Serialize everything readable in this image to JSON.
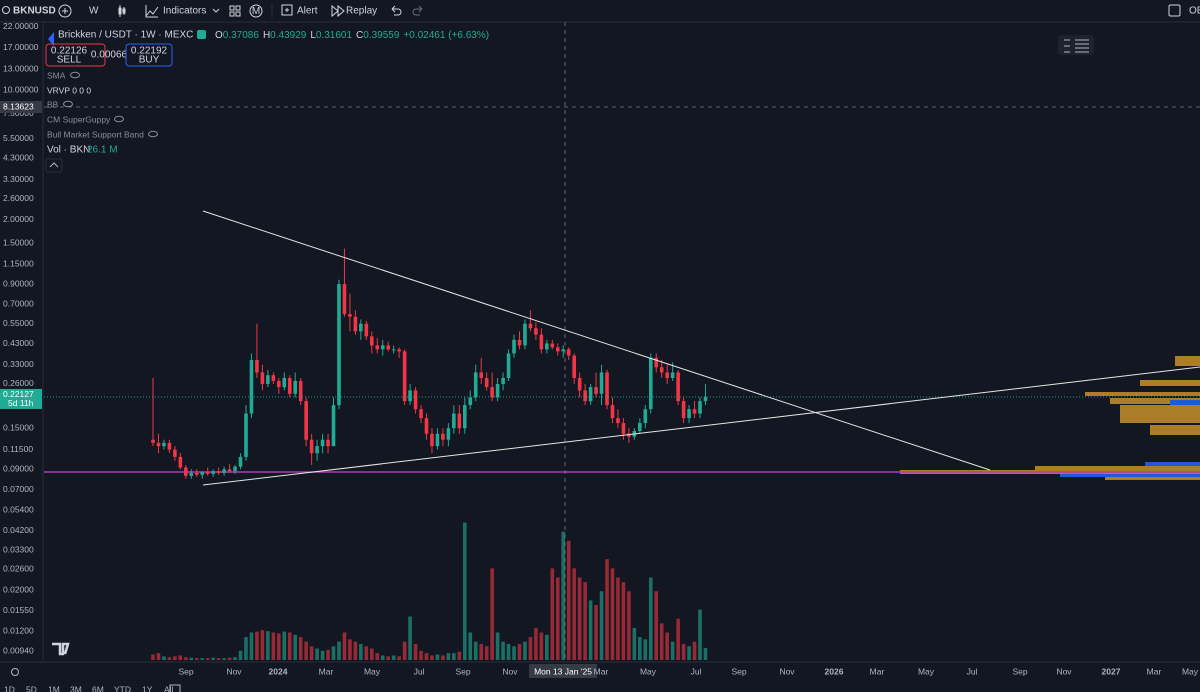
{
  "toolbar": {
    "symbol": "BKNUSD",
    "interval": "W",
    "indicators": "Indicators",
    "alert": "Alert",
    "replay": "Replay",
    "right": "OE"
  },
  "legend": {
    "title": "Brickken / USDT · 1W · MEXC",
    "ohlc": [
      {
        "k": "O",
        "v": "0.37086"
      },
      {
        "k": "H",
        "v": "0.43929"
      },
      {
        "k": "L",
        "v": "0.31601"
      },
      {
        "k": "C",
        "v": "0.39559"
      }
    ],
    "change": "+0.02461 (+6.63%)",
    "sell_price": "0.22126",
    "sell": "SELL",
    "spread": "0.00066",
    "buy_price": "0.22192",
    "buy": "BUY",
    "indicators": [
      "SMA",
      "VRVP  0 0 0",
      "BB",
      "CM SuperGuppy",
      "Bull Market Support Band"
    ],
    "volume": "Vol · BKN",
    "volume_value": "26.1 M"
  },
  "chart_data": {
    "type": "candlestick",
    "log_scale": true,
    "ylim": [
      0.0082,
      24
    ],
    "yticks": [
      {
        "value": 22,
        "label": "22.00000"
      },
      {
        "value": 17,
        "label": "17.00000"
      },
      {
        "value": 13,
        "label": "13.00000"
      },
      {
        "value": 10,
        "label": "10.00000"
      },
      {
        "value": 7.5,
        "label": "7.50000"
      },
      {
        "value": 5.5,
        "label": "5.50000"
      },
      {
        "value": 4.3,
        "label": "4.30000"
      },
      {
        "value": 3.3,
        "label": "3.30000"
      },
      {
        "value": 2.6,
        "label": "2.60000"
      },
      {
        "value": 2,
        "label": "2.00000"
      },
      {
        "value": 1.5,
        "label": "1.50000"
      },
      {
        "value": 1.15,
        "label": "1.15000"
      },
      {
        "value": 0.9,
        "label": "0.90000"
      },
      {
        "value": 0.7,
        "label": "0.70000"
      },
      {
        "value": 0.55,
        "label": "0.55000"
      },
      {
        "value": 0.43,
        "label": "0.43000"
      },
      {
        "value": 0.33,
        "label": "0.33000"
      },
      {
        "value": 0.26,
        "label": "0.26000"
      },
      {
        "value": 0.15,
        "label": "0.15000"
      },
      {
        "value": 0.115,
        "label": "0.11500"
      },
      {
        "value": 0.09,
        "label": "0.09000"
      },
      {
        "value": 0.07,
        "label": "0.07000"
      },
      {
        "value": 0.054,
        "label": "0.05400"
      },
      {
        "value": 0.042,
        "label": "0.04200"
      },
      {
        "value": 0.033,
        "label": "0.03300"
      },
      {
        "value": 0.026,
        "label": "0.02600"
      },
      {
        "value": 0.02,
        "label": "0.02000"
      },
      {
        "value": 0.0155,
        "label": "0.01550"
      },
      {
        "value": 0.012,
        "label": "0.01200"
      },
      {
        "value": 0.0094,
        "label": "0.00940"
      }
    ],
    "last_price": 0.22127,
    "countdown": "5d 11h",
    "crosshair_price": 8.13623,
    "crosshair_date": "Mon 13 Jan '25",
    "support_level": 0.087,
    "support_color": "#b03ab8",
    "up_color": "#22ab94",
    "down_color": "#f23645",
    "xlabels": [
      "Sep",
      "Nov",
      "2024",
      "Mar",
      "May",
      "Jul",
      "Sep",
      "Nov",
      "Mon 13 Jan '25",
      "Mar",
      "May",
      "Jul",
      "Sep",
      "Nov",
      "2026",
      "Mar",
      "May",
      "Jul",
      "Sep",
      "Nov",
      "2027",
      "Mar",
      "May"
    ],
    "candles": [
      [
        0.13,
        0.28,
        0.12,
        0.125
      ],
      [
        0.125,
        0.14,
        0.11,
        0.12
      ],
      [
        0.12,
        0.13,
        0.115,
        0.125
      ],
      [
        0.125,
        0.13,
        0.11,
        0.115
      ],
      [
        0.115,
        0.12,
        0.1,
        0.105
      ],
      [
        0.105,
        0.11,
        0.09,
        0.092
      ],
      [
        0.092,
        0.095,
        0.08,
        0.083
      ],
      [
        0.083,
        0.09,
        0.08,
        0.086
      ],
      [
        0.086,
        0.09,
        0.082,
        0.084
      ],
      [
        0.084,
        0.088,
        0.08,
        0.087
      ],
      [
        0.087,
        0.092,
        0.083,
        0.085
      ],
      [
        0.085,
        0.09,
        0.082,
        0.088
      ],
      [
        0.088,
        0.092,
        0.084,
        0.086
      ],
      [
        0.086,
        0.093,
        0.083,
        0.09
      ],
      [
        0.09,
        0.096,
        0.086,
        0.088
      ],
      [
        0.088,
        0.095,
        0.085,
        0.093
      ],
      [
        0.093,
        0.11,
        0.09,
        0.105
      ],
      [
        0.105,
        0.2,
        0.1,
        0.18
      ],
      [
        0.18,
        0.38,
        0.17,
        0.35
      ],
      [
        0.35,
        0.55,
        0.28,
        0.3
      ],
      [
        0.3,
        0.33,
        0.24,
        0.26
      ],
      [
        0.26,
        0.31,
        0.25,
        0.29
      ],
      [
        0.29,
        0.3,
        0.26,
        0.27
      ],
      [
        0.27,
        0.28,
        0.23,
        0.25
      ],
      [
        0.25,
        0.3,
        0.24,
        0.28
      ],
      [
        0.28,
        0.29,
        0.22,
        0.23
      ],
      [
        0.23,
        0.3,
        0.22,
        0.27
      ],
      [
        0.27,
        0.28,
        0.2,
        0.21
      ],
      [
        0.21,
        0.22,
        0.12,
        0.13
      ],
      [
        0.13,
        0.14,
        0.095,
        0.11
      ],
      [
        0.11,
        0.13,
        0.1,
        0.12
      ],
      [
        0.12,
        0.14,
        0.11,
        0.13
      ],
      [
        0.13,
        0.14,
        0.11,
        0.12
      ],
      [
        0.12,
        0.22,
        0.12,
        0.2
      ],
      [
        0.2,
        0.95,
        0.19,
        0.9
      ],
      [
        0.9,
        1.4,
        0.6,
        0.62
      ],
      [
        0.62,
        0.8,
        0.5,
        0.6
      ],
      [
        0.6,
        0.65,
        0.48,
        0.5
      ],
      [
        0.5,
        0.58,
        0.45,
        0.55
      ],
      [
        0.55,
        0.57,
        0.45,
        0.47
      ],
      [
        0.47,
        0.5,
        0.38,
        0.42
      ],
      [
        0.42,
        0.46,
        0.38,
        0.4
      ],
      [
        0.4,
        0.45,
        0.37,
        0.42
      ],
      [
        0.42,
        0.44,
        0.39,
        0.4
      ],
      [
        0.4,
        0.42,
        0.38,
        0.4
      ],
      [
        0.4,
        0.41,
        0.36,
        0.39
      ],
      [
        0.39,
        0.4,
        0.2,
        0.21
      ],
      [
        0.21,
        0.26,
        0.2,
        0.24
      ],
      [
        0.24,
        0.25,
        0.18,
        0.19
      ],
      [
        0.19,
        0.2,
        0.16,
        0.17
      ],
      [
        0.17,
        0.18,
        0.13,
        0.14
      ],
      [
        0.14,
        0.15,
        0.11,
        0.12
      ],
      [
        0.12,
        0.15,
        0.115,
        0.14
      ],
      [
        0.14,
        0.15,
        0.12,
        0.13
      ],
      [
        0.13,
        0.16,
        0.12,
        0.15
      ],
      [
        0.15,
        0.2,
        0.14,
        0.18
      ],
      [
        0.18,
        0.2,
        0.14,
        0.15
      ],
      [
        0.15,
        0.22,
        0.14,
        0.2
      ],
      [
        0.2,
        0.24,
        0.19,
        0.22
      ],
      [
        0.22,
        0.33,
        0.21,
        0.3
      ],
      [
        0.3,
        0.36,
        0.26,
        0.28
      ],
      [
        0.28,
        0.3,
        0.24,
        0.25
      ],
      [
        0.25,
        0.3,
        0.21,
        0.22
      ],
      [
        0.22,
        0.28,
        0.21,
        0.26
      ],
      [
        0.26,
        0.3,
        0.24,
        0.28
      ],
      [
        0.28,
        0.4,
        0.27,
        0.38
      ],
      [
        0.38,
        0.48,
        0.36,
        0.45
      ],
      [
        0.45,
        0.5,
        0.4,
        0.42
      ],
      [
        0.42,
        0.58,
        0.4,
        0.55
      ],
      [
        0.55,
        0.65,
        0.5,
        0.52
      ],
      [
        0.52,
        0.56,
        0.45,
        0.48
      ],
      [
        0.48,
        0.52,
        0.38,
        0.4
      ],
      [
        0.4,
        0.45,
        0.38,
        0.43
      ],
      [
        0.43,
        0.45,
        0.4,
        0.41
      ],
      [
        0.41,
        0.43,
        0.37,
        0.39
      ],
      [
        0.39,
        0.42,
        0.36,
        0.4
      ],
      [
        0.4,
        0.41,
        0.35,
        0.37
      ],
      [
        0.37,
        0.38,
        0.26,
        0.28
      ],
      [
        0.28,
        0.3,
        0.22,
        0.24
      ],
      [
        0.24,
        0.26,
        0.2,
        0.21
      ],
      [
        0.21,
        0.26,
        0.2,
        0.25
      ],
      [
        0.25,
        0.3,
        0.22,
        0.23
      ],
      [
        0.23,
        0.33,
        0.2,
        0.3
      ],
      [
        0.3,
        0.31,
        0.19,
        0.2
      ],
      [
        0.2,
        0.22,
        0.16,
        0.17
      ],
      [
        0.17,
        0.19,
        0.15,
        0.16
      ],
      [
        0.16,
        0.17,
        0.13,
        0.14
      ],
      [
        0.14,
        0.15,
        0.125,
        0.135
      ],
      [
        0.135,
        0.15,
        0.13,
        0.145
      ],
      [
        0.145,
        0.17,
        0.14,
        0.16
      ],
      [
        0.16,
        0.2,
        0.15,
        0.19
      ],
      [
        0.19,
        0.38,
        0.18,
        0.36
      ],
      [
        0.36,
        0.38,
        0.3,
        0.32
      ],
      [
        0.32,
        0.35,
        0.28,
        0.3
      ],
      [
        0.3,
        0.33,
        0.26,
        0.28
      ],
      [
        0.28,
        0.34,
        0.27,
        0.3
      ],
      [
        0.3,
        0.31,
        0.2,
        0.21
      ],
      [
        0.21,
        0.22,
        0.16,
        0.17
      ],
      [
        0.17,
        0.2,
        0.16,
        0.19
      ],
      [
        0.19,
        0.21,
        0.17,
        0.18
      ],
      [
        0.18,
        0.22,
        0.17,
        0.21
      ],
      [
        0.21,
        0.26,
        0.2,
        0.22127
      ]
    ],
    "volume_lim": [
      0,
      360
    ],
    "volume": [
      12,
      15,
      8,
      6,
      8,
      10,
      6,
      5,
      4,
      4,
      4,
      5,
      4,
      4,
      5,
      6,
      20,
      50,
      60,
      62,
      65,
      63,
      60,
      58,
      62,
      60,
      55,
      50,
      40,
      30,
      25,
      20,
      22,
      30,
      40,
      60,
      45,
      40,
      35,
      30,
      25,
      15,
      10,
      8,
      10,
      8,
      40,
      95,
      35,
      20,
      15,
      10,
      12,
      10,
      15,
      15,
      18,
      300,
      60,
      40,
      35,
      30,
      200,
      60,
      40,
      35,
      30,
      35,
      40,
      50,
      70,
      60,
      55,
      200,
      180,
      280,
      260,
      200,
      180,
      170,
      130,
      120,
      150,
      220,
      200,
      180,
      170,
      150,
      70,
      50,
      45,
      180,
      150,
      80,
      60,
      40,
      90,
      35,
      30,
      40,
      110,
      26.1
    ]
  },
  "ranges": [
    "1D",
    "5D",
    "1M",
    "3M",
    "6M",
    "YTD",
    "1Y",
    "All"
  ]
}
